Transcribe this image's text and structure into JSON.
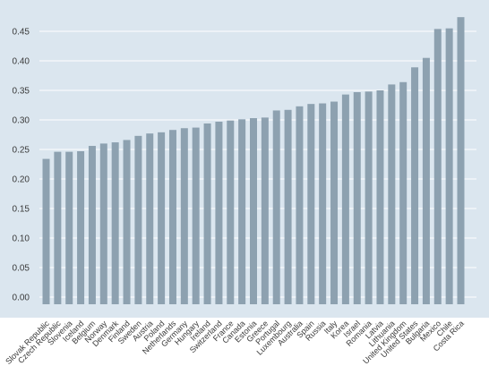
{
  "chart_data": {
    "type": "bar",
    "categories": [
      "Slovak Republic",
      "Czech Republic",
      "Slovenia",
      "Iceland",
      "Belgium",
      "Norway",
      "Denmark",
      "Finland",
      "Sweden",
      "Austria",
      "Poland",
      "Netherlands",
      "Germany",
      "Hungary",
      "Ireland",
      "Switzerland",
      "France",
      "Canada",
      "Estonia",
      "Greece",
      "Portugal",
      "Luxembourg",
      "Australia",
      "Spain",
      "Russia",
      "Italy",
      "Korea",
      "Israel",
      "Romania",
      "Latvia",
      "Lithuania",
      "United Kingdom",
      "United States",
      "Bulgaria",
      "Mexico",
      "Chile",
      "Costa Rica"
    ],
    "values": [
      0.234,
      0.246,
      0.246,
      0.247,
      0.256,
      0.26,
      0.262,
      0.266,
      0.273,
      0.277,
      0.279,
      0.283,
      0.286,
      0.287,
      0.294,
      0.297,
      0.299,
      0.301,
      0.303,
      0.304,
      0.316,
      0.317,
      0.323,
      0.327,
      0.328,
      0.331,
      0.343,
      0.347,
      0.348,
      0.35,
      0.36,
      0.364,
      0.389,
      0.405,
      0.454,
      0.455,
      0.474
    ],
    "ylim": [
      0,
      0.48
    ],
    "yticks": [
      "0.00",
      "0.05",
      "0.10",
      "0.15",
      "0.20",
      "0.25",
      "0.30",
      "0.35",
      "0.40",
      "0.45"
    ],
    "ytick_values": [
      0,
      0.05,
      0.1,
      0.15,
      0.2,
      0.25,
      0.3,
      0.35,
      0.4,
      0.45
    ],
    "grid": true,
    "legend": "none",
    "title": "",
    "xlabel": "",
    "ylabel": "",
    "colors": {
      "plot_background": "#dbe6ef",
      "bar": "#8da1b0",
      "gridline": "#ffffff"
    }
  }
}
